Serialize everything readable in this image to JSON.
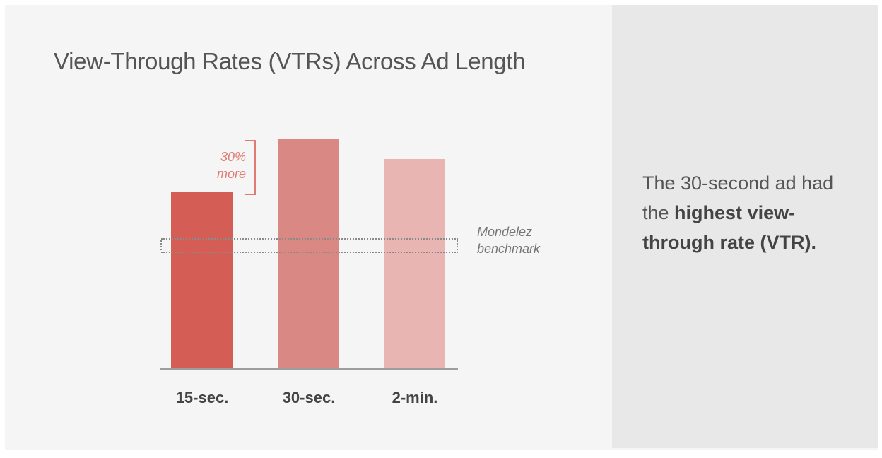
{
  "title": "View-Through Rates (VTRs) Across Ad Length",
  "chart_data": {
    "type": "bar",
    "title": "View-Through Rates (VTRs) Across Ad Length",
    "categories": [
      "15-sec.",
      "30-sec.",
      "2-min."
    ],
    "values": [
      100,
      130,
      119
    ],
    "value_note": "Relative VTR indexed to 15-sec. = 100 (no y-axis shown); 30-sec. is labeled 30% more than 15-sec.",
    "colors": [
      "#d45d56",
      "#da8884",
      "#e8b5b3"
    ],
    "xlabel": "",
    "ylabel": "",
    "grid": false,
    "legend": null,
    "benchmark": {
      "label": "Mondelez benchmark",
      "value_range": [
        65,
        73
      ],
      "style": "dotted band"
    },
    "annotations": [
      {
        "text": "30% more",
        "between": [
          "15-sec.",
          "30-sec."
        ],
        "color": "#e07a72"
      }
    ]
  },
  "annotation": {
    "line1": "30%",
    "line2": "more"
  },
  "benchmark_label": {
    "line1": "Mondelez",
    "line2": "benchmark"
  },
  "insight": {
    "prefix": "The 30-second ad had the ",
    "bold": "highest view-through rate (VTR)."
  }
}
